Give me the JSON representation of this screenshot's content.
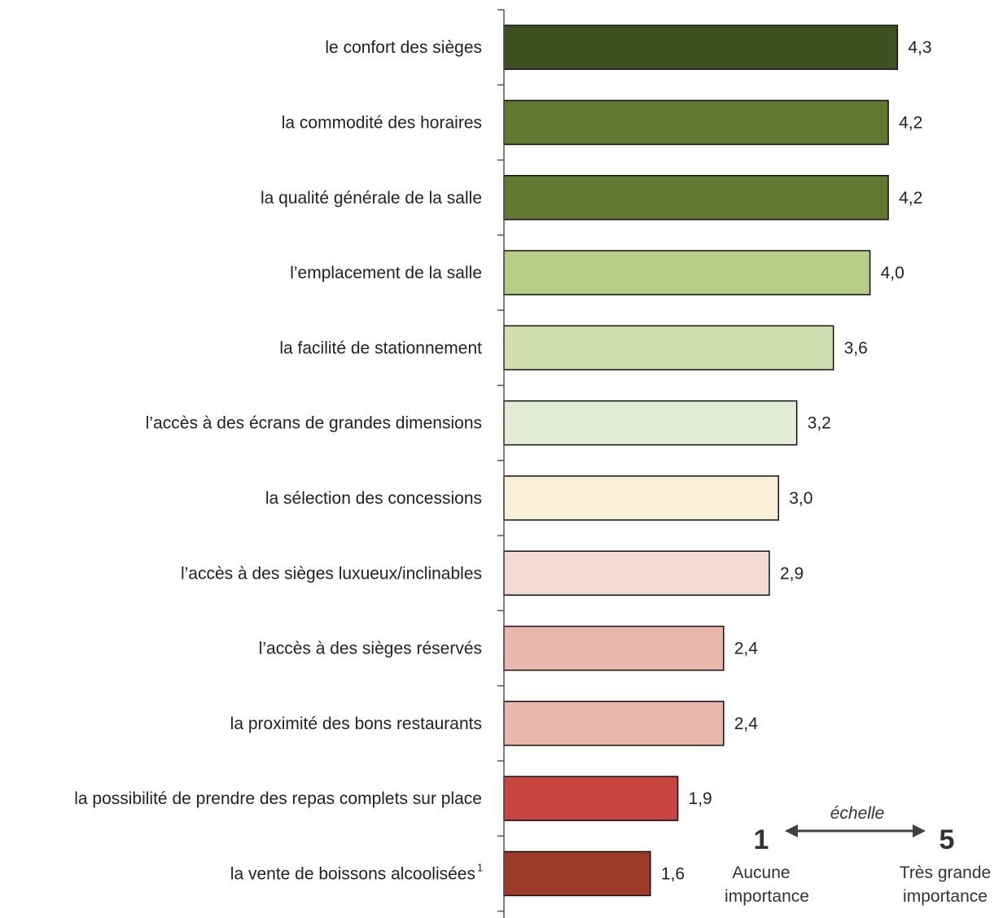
{
  "chart_data": {
    "type": "bar",
    "orientation": "horizontal",
    "title": "",
    "xlabel": "",
    "ylabel": "",
    "xlim": [
      0,
      5
    ],
    "grid": false,
    "categories": [
      "le confort des sièges",
      "la commodité des horaires",
      "la qualité générale de la salle",
      "l’emplacement de la salle",
      "la facilité de stationnement",
      "l’accès à des écrans de grandes dimensions",
      "la sélection des concessions",
      "l’accès à des sièges luxueux/inclinables",
      "l’accès à des sièges réservés",
      "la proximité des bons restaurants",
      "la possibilité de prendre des repas complets sur place",
      "la vente de boissons alcoolisées"
    ],
    "category_superscripts": [
      "",
      "",
      "",
      "",
      "",
      "",
      "",
      "",
      "",
      "",
      "",
      "1"
    ],
    "values": [
      4.3,
      4.2,
      4.2,
      4.0,
      3.6,
      3.2,
      3.0,
      2.9,
      2.4,
      2.4,
      1.9,
      1.6
    ],
    "value_labels": [
      "4,3",
      "4,2",
      "4,2",
      "4,0",
      "3,6",
      "3,2",
      "3,0",
      "2,9",
      "2,4",
      "2,4",
      "1,9",
      "1,6"
    ],
    "colors": [
      "#404f21",
      "#617732",
      "#617732",
      "#b7cd86",
      "#d1dfb0",
      "#e3ecd5",
      "#faf0d8",
      "#f3dad4",
      "#e9b7ac",
      "#e9b7ac",
      "#c84541",
      "#9c3b28"
    ],
    "scale_legend": {
      "label": "échelle",
      "min_value": "1",
      "min_label_line1": "Aucune",
      "min_label_line2": "importance",
      "max_value": "5",
      "max_label_line1": "Très grande",
      "max_label_line2": "importance"
    }
  }
}
